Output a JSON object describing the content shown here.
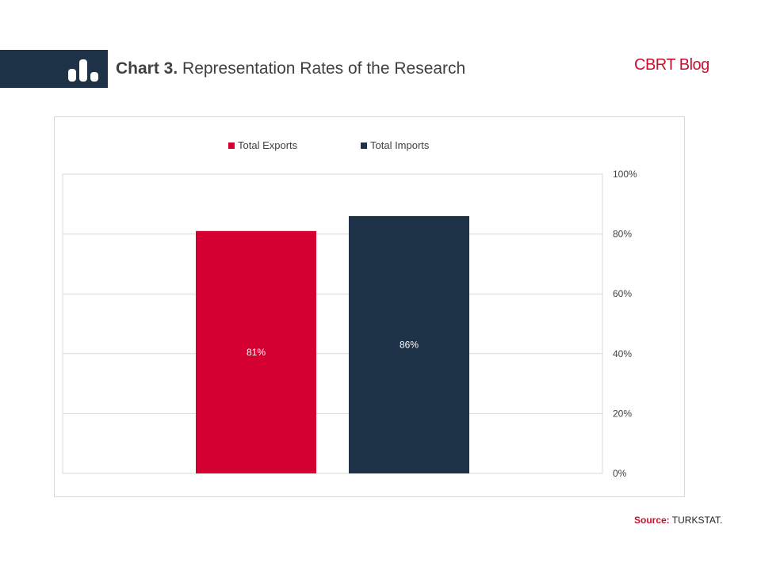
{
  "header": {
    "chart_number": "Chart 3.",
    "title_rest": " Representation Rates of the Research",
    "brand": "CBRT Blog"
  },
  "source": {
    "label": "Source:",
    "text": " TURKSTAT."
  },
  "colors": {
    "exports": "#d50032",
    "imports": "#1e3248",
    "brand": "#c8102e",
    "band": "#1e3248"
  },
  "icons": {
    "header_icon": "bar-chart-icon"
  },
  "chart_data": {
    "type": "bar",
    "categories": [
      "Total Exports",
      "Total Imports"
    ],
    "values": [
      81,
      86
    ],
    "data_labels": [
      "81%",
      "86%"
    ],
    "legend": [
      "Total Exports",
      "Total Imports"
    ],
    "legend_position": "top-center",
    "y_axis_side": "right",
    "yticks": [
      0,
      20,
      40,
      60,
      80,
      100
    ],
    "ytick_labels": [
      "0%",
      "20%",
      "40%",
      "60%",
      "80%",
      "100%"
    ],
    "ylim": [
      0,
      100
    ],
    "grid": true,
    "title": "",
    "xlabel": "",
    "ylabel": ""
  }
}
